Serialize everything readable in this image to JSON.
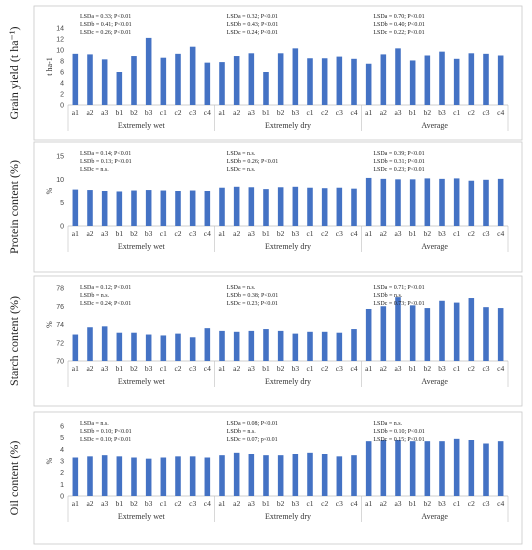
{
  "chart_data": [
    {
      "type": "bar",
      "ylabel": "Grain yield (t ha⁻¹)",
      "unit": "t ha-1",
      "ylim": [
        0,
        14
      ],
      "yticks": [
        0,
        2,
        4,
        6,
        8,
        10,
        12,
        14
      ],
      "categories": [
        "a1",
        "a2",
        "a3",
        "b1",
        "b2",
        "b3",
        "c1",
        "c2",
        "c3",
        "c4"
      ],
      "color": "#4472c4",
      "groups": [
        {
          "name": "Extremely wet",
          "values": [
            9.3,
            9.2,
            8.3,
            6.0,
            8.9,
            12.2,
            8.6,
            9.3,
            10.6,
            7.7
          ],
          "annotations": [
            "LSDa = 0.33; P<0.01",
            "LSDb = 0.41; P<0.01",
            "LSDc = 0.26; P<0.01"
          ]
        },
        {
          "name": "Extremely dry",
          "values": [
            7.8,
            8.9,
            9.4,
            6.0,
            9.4,
            10.3,
            8.5,
            8.5,
            8.8,
            8.4
          ],
          "annotations": [
            "LSDa = 0.32; P<0.01",
            "LSDb = 0.43; P<0.01",
            "LSDc = 0.24; P<0.01"
          ]
        },
        {
          "name": "Average",
          "values": [
            7.5,
            9.2,
            10.3,
            8.1,
            9.0,
            9.7,
            8.4,
            9.4,
            9.3,
            9.0
          ],
          "annotations": [
            "LSDa = 0.70; P<0.01",
            "LSDb = 0.40; P<0.01",
            "LSDc = 0.22; P<0.01"
          ]
        }
      ]
    },
    {
      "type": "bar",
      "ylabel": "Protein content (%)",
      "unit": "%",
      "ylim": [
        0,
        15
      ],
      "yticks": [
        0,
        5,
        10,
        15
      ],
      "categories": [
        "a1",
        "a2",
        "a3",
        "b1",
        "b2",
        "b3",
        "c1",
        "c2",
        "c3",
        "c4"
      ],
      "color": "#4472c4",
      "groups": [
        {
          "name": "Extremely wet",
          "values": [
            7.8,
            7.7,
            7.5,
            7.4,
            7.6,
            7.7,
            7.6,
            7.5,
            7.6,
            7.5
          ],
          "annotations": [
            "LSDa = 0.14; P<0.01",
            "LSDb = 0.13; P<0.01",
            "LSDc = n.s."
          ]
        },
        {
          "name": "Extremely dry",
          "values": [
            8.2,
            8.4,
            8.3,
            7.9,
            8.3,
            8.4,
            8.2,
            8.1,
            8.2,
            8.0
          ],
          "annotations": [
            "LSDa = n.s.",
            "LSDb = 0.26; P<0.01",
            "LSDc = n.s."
          ]
        },
        {
          "name": "Average",
          "values": [
            10.3,
            10.1,
            10.0,
            10.0,
            10.2,
            10.1,
            10.2,
            9.7,
            9.9,
            10.1
          ],
          "annotations": [
            "LSDa = 0.39; P<0.01",
            "LSDb = 0.31; P<0.01",
            "LSDc = 0.23; P<0.01"
          ]
        }
      ]
    },
    {
      "type": "bar",
      "ylabel": "Starch content (%)",
      "unit": "%",
      "ylim": [
        70,
        78
      ],
      "yticks": [
        70,
        72,
        74,
        76,
        78
      ],
      "categories": [
        "a1",
        "a2",
        "a3",
        "b1",
        "b2",
        "b3",
        "c1",
        "c2",
        "c3",
        "c4"
      ],
      "color": "#4472c4",
      "groups": [
        {
          "name": "Extremely wet",
          "values": [
            72.9,
            73.7,
            73.8,
            73.1,
            73.1,
            72.9,
            72.8,
            73.0,
            72.6,
            73.6
          ],
          "annotations": [
            "LSDa = 0.12; P<0.01",
            "LSDb = n.s.",
            "LSDc = 0.24; P<0.01"
          ]
        },
        {
          "name": "Extremely dry",
          "values": [
            73.3,
            73.2,
            73.3,
            73.5,
            73.3,
            73.0,
            73.2,
            73.2,
            73.1,
            73.5
          ],
          "annotations": [
            "LSDa = n.s.",
            "LSDb = 0.38; P<0.01",
            "LSDc = 0.23; P<0.01"
          ]
        },
        {
          "name": "Average",
          "values": [
            75.7,
            76.0,
            77.0,
            76.1,
            75.8,
            76.6,
            76.4,
            76.9,
            75.9,
            75.8
          ],
          "annotations": [
            "LSDa = 0.71; P<0.01",
            "LSDb = n.s.",
            "LSDc = 0.73; P<0.01"
          ]
        }
      ]
    },
    {
      "type": "bar",
      "ylabel": "Oil content (%)",
      "unit": "%",
      "ylim": [
        0,
        6
      ],
      "yticks": [
        0,
        1,
        2,
        3,
        4,
        5,
        6
      ],
      "categories": [
        "a1",
        "a2",
        "a3",
        "b1",
        "b2",
        "b3",
        "c1",
        "c2",
        "c3",
        "c4"
      ],
      "color": "#4472c4",
      "groups": [
        {
          "name": "Extremely wet",
          "values": [
            3.3,
            3.4,
            3.5,
            3.4,
            3.3,
            3.2,
            3.3,
            3.4,
            3.4,
            3.3
          ],
          "annotations": [
            "LSDa = n.s.",
            "LSDb = 0.10; P<0.01",
            "LSDc = 0.10; P<0.01"
          ]
        },
        {
          "name": "Extremely dry",
          "values": [
            3.5,
            3.7,
            3.6,
            3.5,
            3.5,
            3.6,
            3.7,
            3.6,
            3.4,
            3.5
          ],
          "annotations": [
            "LSDa = 0.08; P<0.01",
            "LSDb = n.s.",
            "LSDc = 0.07; p<0.01"
          ]
        },
        {
          "name": "Average",
          "values": [
            4.7,
            4.8,
            4.8,
            4.7,
            4.7,
            4.7,
            4.9,
            4.8,
            4.5,
            4.7
          ],
          "annotations": [
            "LSDa = n.s.",
            "LSDb = 0.10; P<0.01",
            "LSDc = 0.15; P<0.01"
          ]
        }
      ]
    }
  ]
}
